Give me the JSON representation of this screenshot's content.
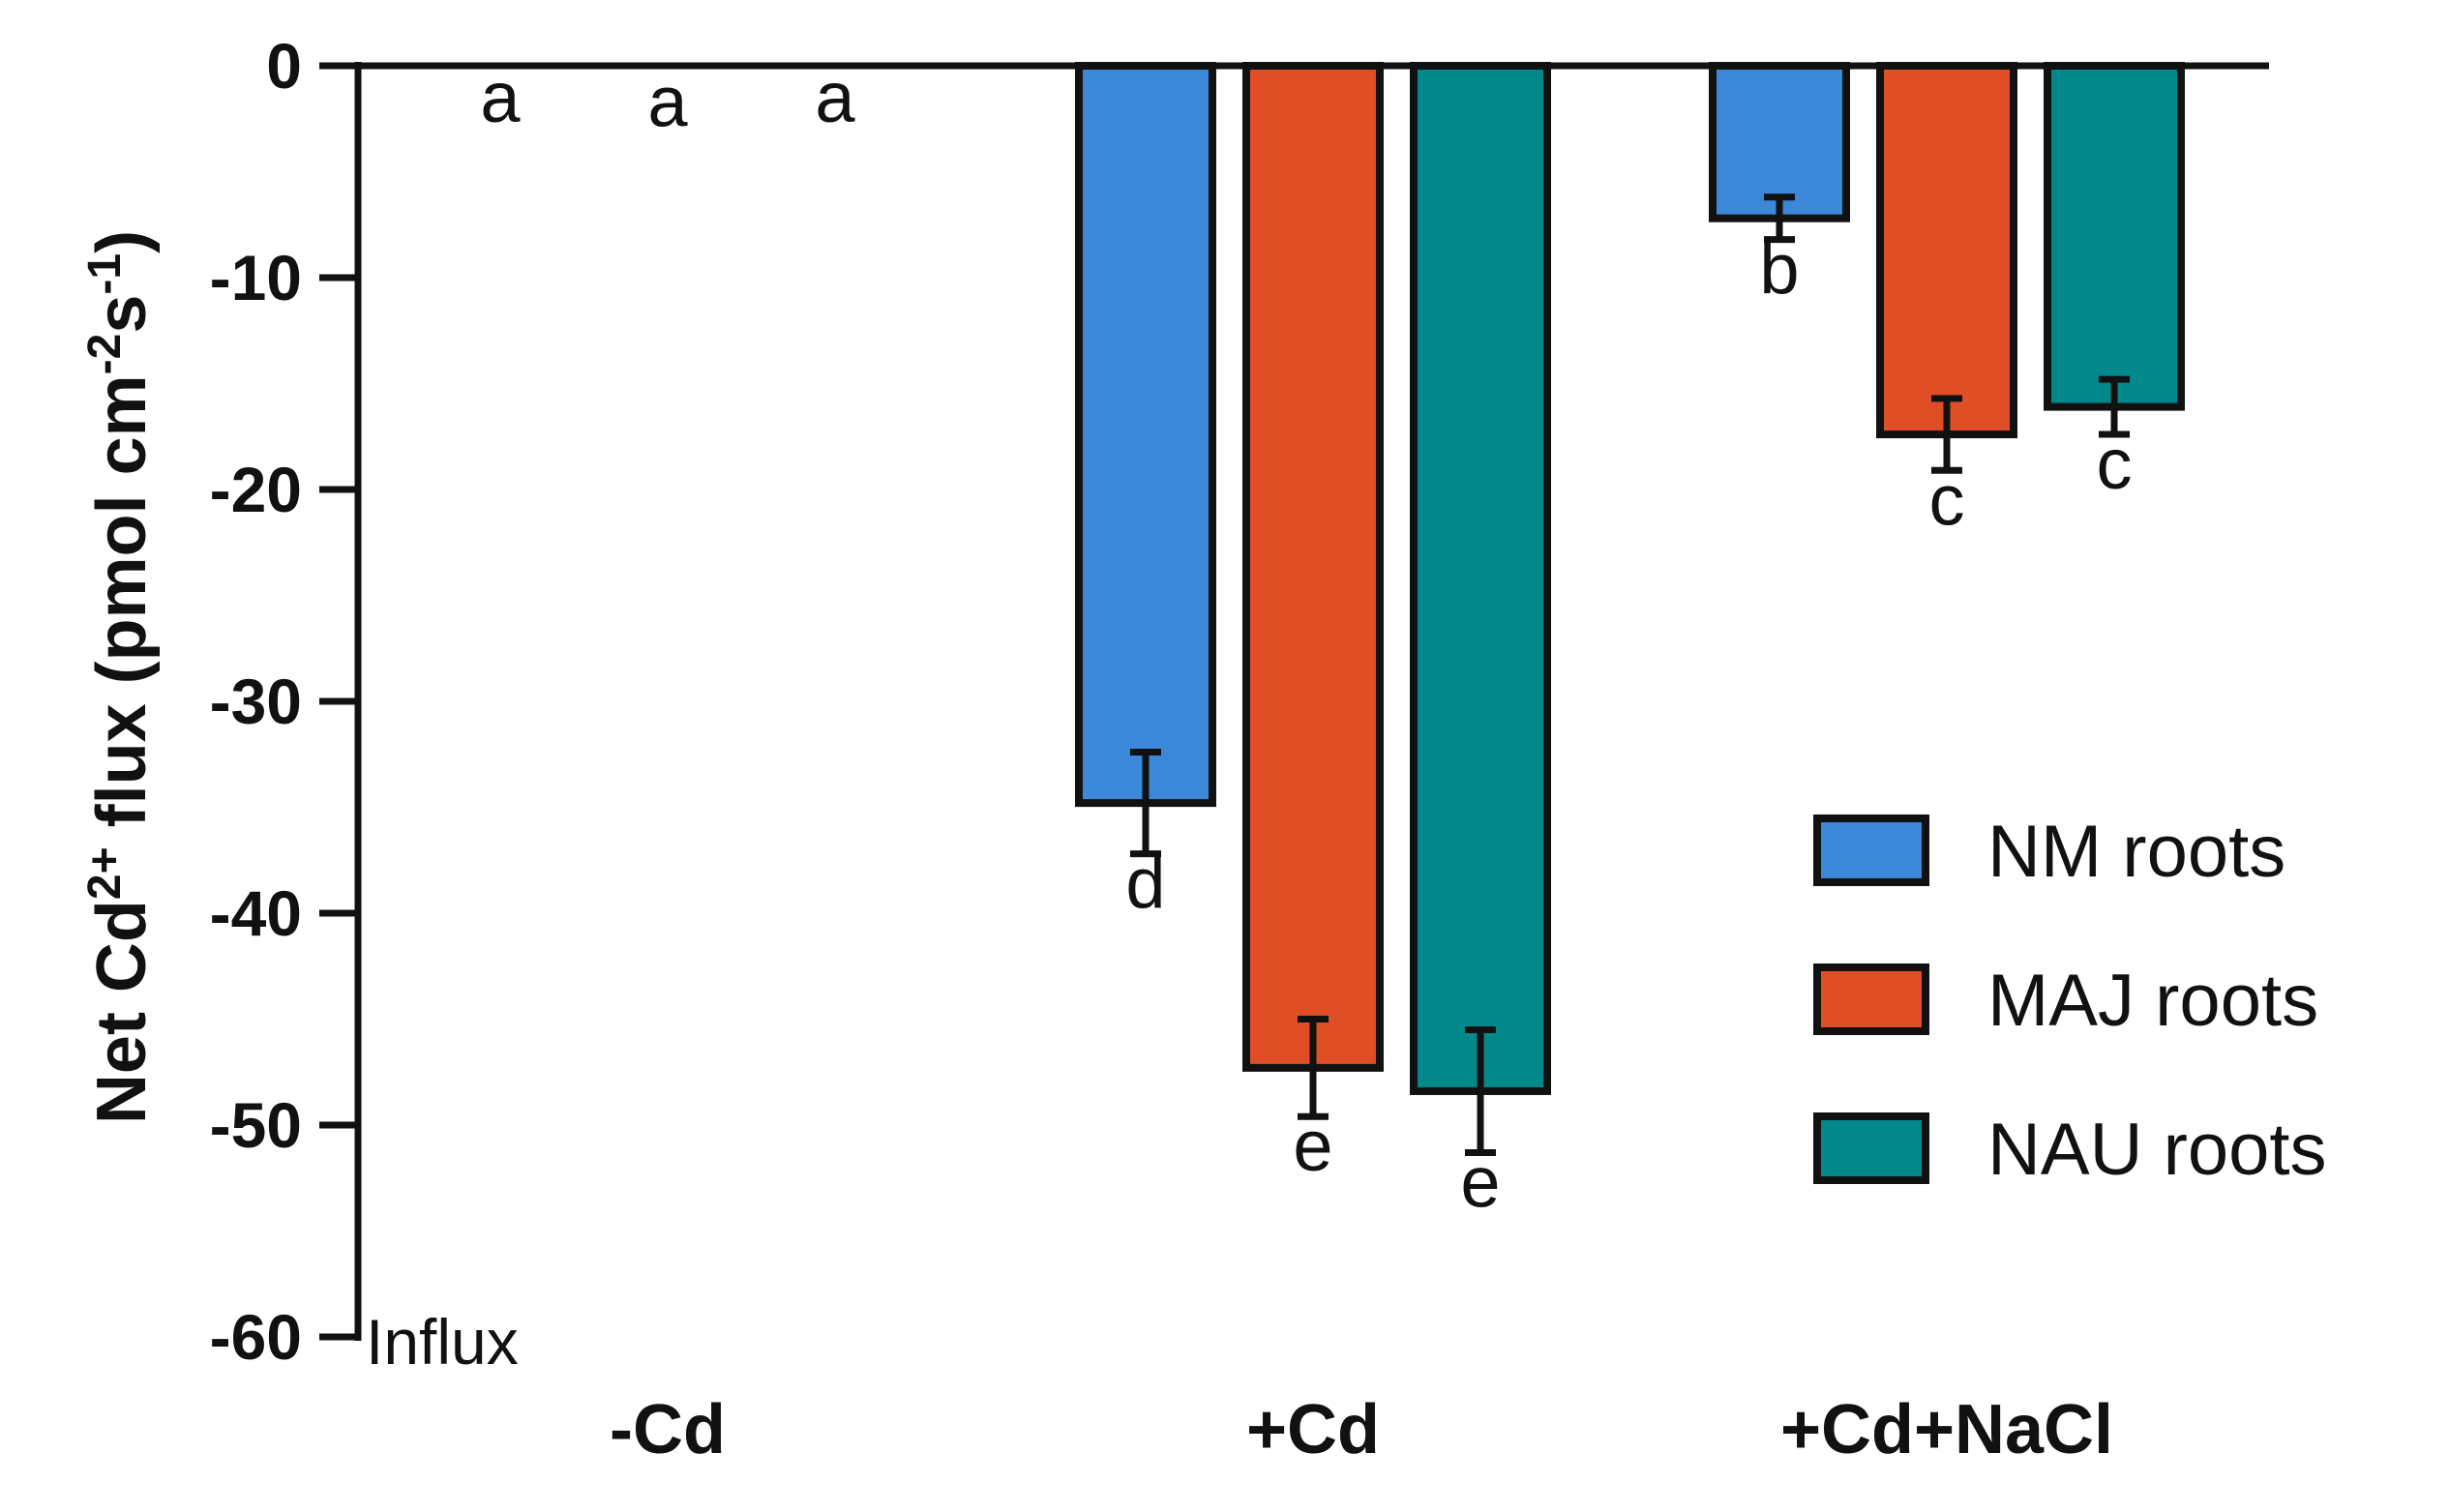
{
  "chart_data": {
    "type": "bar",
    "ylabel": "Net Cd²⁺ flux (pmol cm⁻²s⁻¹)",
    "ylabel_parts": {
      "pre": "Net Cd",
      "sup1": "2+",
      "mid": " flux (pmol cm",
      "sup2": "-2",
      "mid2": "s",
      "sup3": "-1",
      "post": ")"
    },
    "ylim": [
      -60,
      0
    ],
    "yticks": [
      0,
      -10,
      -20,
      -30,
      -40,
      -50,
      -60
    ],
    "categories": [
      "-Cd",
      "+Cd",
      "+Cd+NaCl"
    ],
    "series": [
      {
        "name": "NM roots",
        "color": "#3b87d8",
        "values": [
          0,
          -34.8,
          -7.2
        ],
        "errors": [
          0,
          2.4,
          1.0
        ],
        "labels": [
          "a",
          "d",
          "b"
        ]
      },
      {
        "name": "MAJ roots",
        "color": "#e04e25",
        "values": [
          -0.2,
          -47.3,
          -17.4
        ],
        "errors": [
          0,
          2.3,
          1.7
        ],
        "labels": [
          "a",
          "e",
          "c"
        ]
      },
      {
        "name": "NAU roots",
        "color": "#00888a",
        "values": [
          0,
          -48.4,
          -16.1
        ],
        "errors": [
          0,
          2.9,
          1.3
        ],
        "labels": [
          "a",
          "e",
          "c"
        ]
      }
    ],
    "annotation": "Influx",
    "legend_position": "right",
    "grid": false
  }
}
